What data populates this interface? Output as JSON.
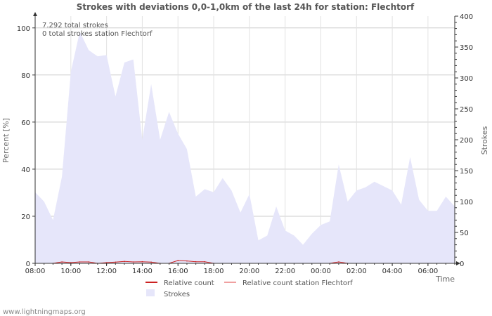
{
  "chart_data": {
    "type": "area",
    "title": "Strokes with deviations 0,0-1,0km of the last 24h for station: Flechtorf",
    "xlabel": "Time",
    "ylabel_left": "Percent   [%]",
    "ylabel_right": "Strokes",
    "ylim_left": [
      0,
      105
    ],
    "ylim_right": [
      0,
      400
    ],
    "left_ticks": [
      0,
      20,
      40,
      60,
      80,
      100
    ],
    "right_ticks": [
      0,
      50,
      100,
      150,
      200,
      250,
      300,
      350,
      400
    ],
    "x_range": [
      8.0,
      31.5
    ],
    "x_ticks": [
      {
        "pos": 8,
        "label": "08:00"
      },
      {
        "pos": 10,
        "label": "10:00"
      },
      {
        "pos": 12,
        "label": "12:00"
      },
      {
        "pos": 14,
        "label": "14:00"
      },
      {
        "pos": 16,
        "label": "16:00"
      },
      {
        "pos": 18,
        "label": "18:00"
      },
      {
        "pos": 20,
        "label": "20:00"
      },
      {
        "pos": 22,
        "label": "22:00"
      },
      {
        "pos": 24,
        "label": "00:00"
      },
      {
        "pos": 26,
        "label": "02:00"
      },
      {
        "pos": 28,
        "label": "04:00"
      },
      {
        "pos": 30,
        "label": "06:00"
      }
    ],
    "annotations": [
      "7.292 total strokes",
      "0 total strokes station Flechtorf"
    ],
    "series": [
      {
        "name": "Strokes",
        "axis": "right",
        "color": "#e6e6fa",
        "x": [
          8.0,
          8.5,
          9.0,
          9.5,
          10.0,
          10.5,
          11.0,
          11.5,
          12.0,
          12.5,
          13.0,
          13.5,
          14.0,
          14.5,
          15.0,
          15.5,
          16.0,
          16.5,
          17.0,
          17.5,
          18.0,
          18.5,
          19.0,
          19.5,
          20.0,
          20.5,
          21.0,
          21.5,
          22.0,
          22.5,
          23.0,
          23.5,
          24.0,
          24.5,
          25.0,
          25.5,
          26.0,
          26.5,
          27.0,
          27.5,
          28.0,
          28.5,
          29.0,
          29.5,
          30.0,
          30.5,
          31.0,
          31.5
        ],
        "values": [
          115,
          100,
          70,
          140,
          310,
          375,
          345,
          335,
          337,
          270,
          325,
          330,
          200,
          290,
          200,
          245,
          210,
          185,
          108,
          120,
          115,
          138,
          118,
          82,
          112,
          37,
          45,
          92,
          53,
          45,
          30,
          48,
          62,
          68,
          160,
          100,
          118,
          123,
          132,
          125,
          118,
          95,
          172,
          103,
          85,
          85,
          108,
          92
        ]
      },
      {
        "name": "Relative count",
        "axis": "left",
        "color": "#cc2222",
        "x": [
          9.0,
          9.5,
          10.0,
          10.5,
          11.0,
          11.5,
          12.0,
          12.5,
          13.0,
          13.5,
          14.0,
          14.5,
          15.0,
          15.5,
          16.0,
          16.5,
          17.0,
          17.5,
          18.0,
          24.5,
          25.0,
          25.5
        ],
        "values": [
          0,
          0.6,
          0.3,
          0.6,
          0.6,
          0,
          0.3,
          0.5,
          0.8,
          0.6,
          0.7,
          0.5,
          0,
          0,
          1.2,
          1.0,
          0.7,
          0.7,
          0,
          0,
          0.6,
          0
        ]
      },
      {
        "name": "Relative count station Flechtorf",
        "axis": "left",
        "color": "#f0a0a0",
        "x": [],
        "values": []
      }
    ],
    "legend": [
      {
        "label": "Relative count",
        "color": "#cc2222",
        "kind": "line"
      },
      {
        "label": "Relative count station Flechtorf",
        "color": "#f0a0a0",
        "kind": "line"
      },
      {
        "label": "Strokes",
        "color": "#e6e6fa",
        "kind": "box"
      }
    ]
  },
  "footer": "www.lightningmaps.org"
}
